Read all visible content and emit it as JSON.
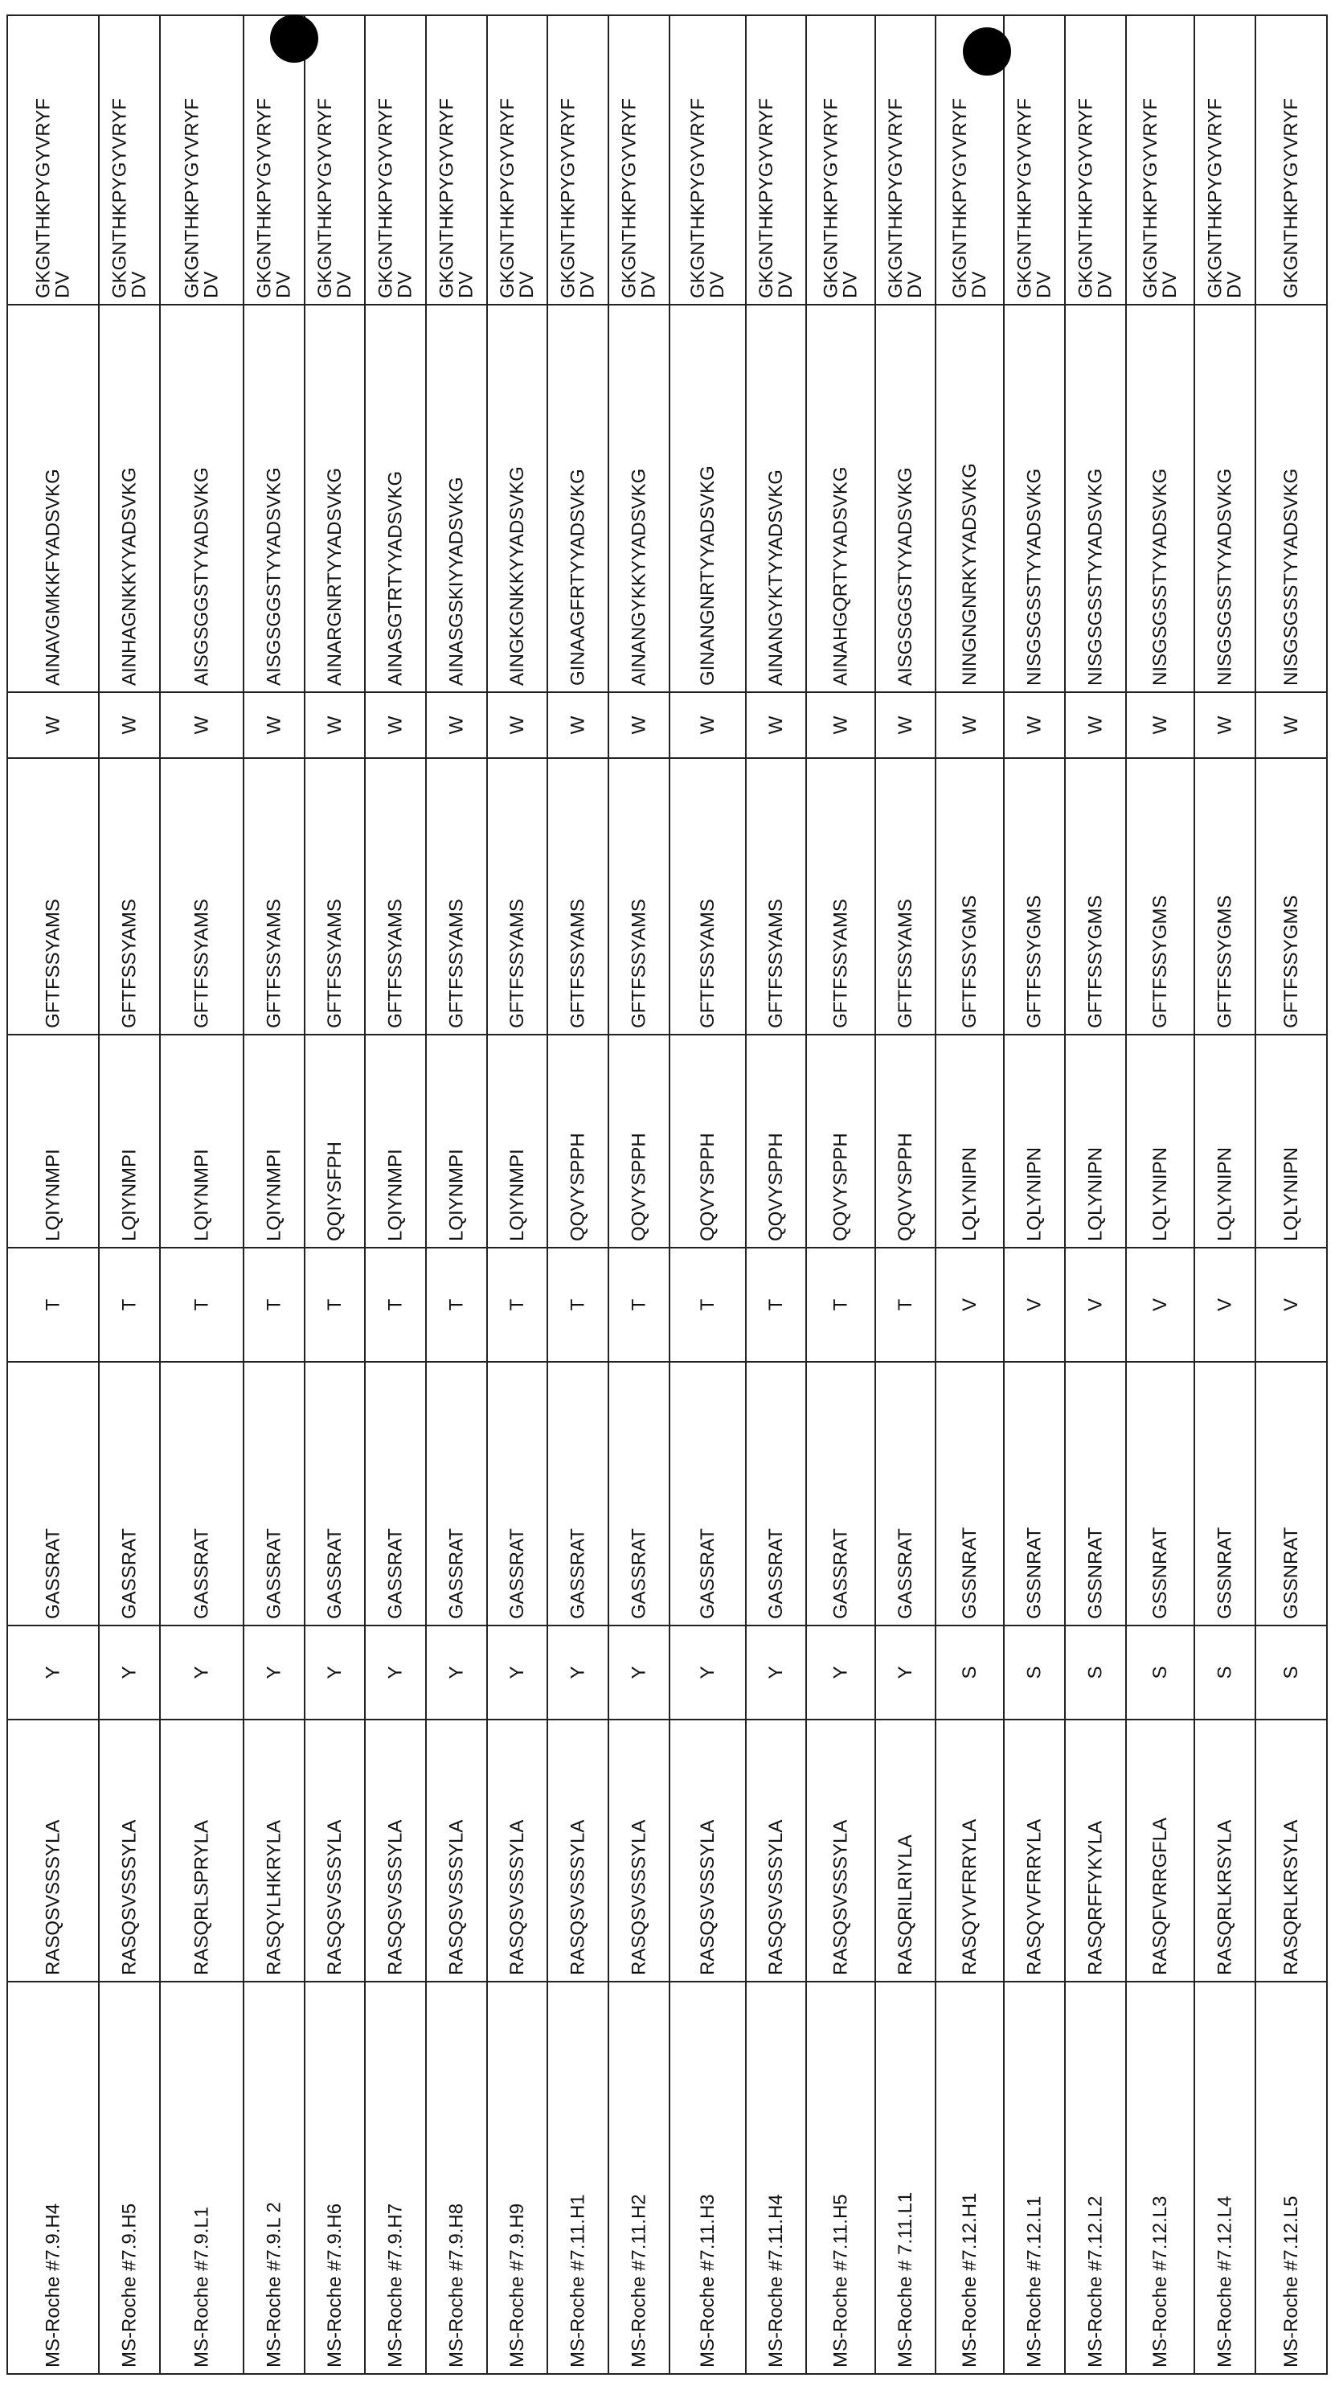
{
  "table": {
    "rows": [
      [
        "MS-Roche #7.9.H4",
        "RASQSVSSSYLA",
        "Y",
        "GASSRAT",
        "T",
        "LQIYNMPI",
        "GFTFSSYAMS",
        "W",
        "AINAVGMKKFYADSVKG",
        [
          "GKGNTHKPYGYVRYF",
          "DV"
        ]
      ],
      [
        "MS-Roche #7.9.H5",
        "RASQSVSSSYLA",
        "Y",
        "GASSRAT",
        "T",
        "LQIYNMPI",
        "GFTFSSYAMS",
        "W",
        "AINHAGNKKYYADSVKG",
        [
          "GKGNTHKPYGYVRYF",
          "DV"
        ]
      ],
      [
        "MS-Roche #7.9.L1",
        "RASQRLSPRYLA",
        "Y",
        "GASSRAT",
        "T",
        "LQIYNMPI",
        "GFTFSSYAMS",
        "W",
        "AISGSGGSTYYADSVKG",
        [
          "GKGNTHKPYGYVRYF",
          "DV"
        ]
      ],
      [
        "MS-Roche #7.9.L 2",
        "RASQYLHKRYLA",
        "Y",
        "GASSRAT",
        "T",
        "LQIYNMPI",
        "GFTFSSYAMS",
        "W",
        "AISGSGGSTYYADSVKG",
        [
          "GKGNTHKPYGYVRYF",
          "DV"
        ]
      ],
      [
        "MS-Roche #7.9.H6",
        "RASQSVSSSYLA",
        "Y",
        "GASSRAT",
        "T",
        "QQIYSFPH",
        "GFTFSSYAMS",
        "W",
        "AINARGNRTYYADSVKG",
        [
          "GKGNTHKPYGYVRYF",
          "DV"
        ]
      ],
      [
        "MS-Roche #7.9.H7",
        "RASQSVSSSYLA",
        "Y",
        "GASSRAT",
        "T",
        "LQIYNMPI",
        "GFTFSSYAMS",
        "W",
        "AINASGTRTYYADSVKG",
        [
          "GKGNTHKPYGYVRYF",
          "DV"
        ]
      ],
      [
        "MS-Roche #7.9.H8",
        "RASQSVSSSYLA",
        "Y",
        "GASSRAT",
        "T",
        "LQIYNMPI",
        "GFTFSSYAMS",
        "W",
        "AINASGSKIYYADSVKG",
        [
          "GKGNTHKPYGYVRYF",
          "DV"
        ]
      ],
      [
        "MS-Roche #7.9.H9",
        "RASQSVSSSYLA",
        "Y",
        "GASSRAT",
        "T",
        "LQIYNMPI",
        "GFTFSSYAMS",
        "W",
        "AINGKGNKKYYADSVKG",
        [
          "GKGNTHKPYGYVRYF",
          "DV"
        ]
      ],
      [
        "MS-Roche #7.11.H1",
        "RASQSVSSSYLA",
        "Y",
        "GASSRAT",
        "T",
        "QQVYSPPH",
        "GFTFSSYAMS",
        "W",
        "GINAAGFRTYYADSVKG",
        [
          "GKGNTHKPYGYVRYF",
          "DV"
        ]
      ],
      [
        "MS-Roche #7.11.H2",
        "RASQSVSSSYLA",
        "Y",
        "GASSRAT",
        "T",
        "QQVYSPPH",
        "GFTFSSYAMS",
        "W",
        "AINANGYKKYYADSVKG",
        [
          "GKGNTHKPYGYVRYF",
          "DV"
        ]
      ],
      [
        "MS-Roche #7.11.H3",
        "RASQSVSSSYLA",
        "Y",
        "GASSRAT",
        "T",
        "QQVYSPPH",
        "GFTFSSYAMS",
        "W",
        "GINANGNRTYYADSVKG",
        [
          "GKGNTHKPYGYVRYF",
          "DV"
        ]
      ],
      [
        "MS-Roche #7.11.H4",
        "RASQSVSSSYLA",
        "Y",
        "GASSRAT",
        "T",
        "QQVYSPPH",
        "GFTFSSYAMS",
        "W",
        "AINANGYKTYYADSVKG",
        [
          "GKGNTHKPYGYVRYF",
          "DV"
        ]
      ],
      [
        "MS-Roche #7.11.H5",
        "RASQSVSSSYLA",
        "Y",
        "GASSRAT",
        "T",
        "QQVYSPPH",
        "GFTFSSYAMS",
        "W",
        "AINAHGQRTYYADSVKG",
        [
          "GKGNTHKPYGYVRYF",
          "DV"
        ]
      ],
      [
        "MS-Roche # 7.11.L1",
        "RASQRILRIYLA",
        "Y",
        "GASSRAT",
        "T",
        "QQVYSPPH",
        "GFTFSSYAMS",
        "W",
        "AISGSGGSTYYADSVKG",
        [
          "GKGNTHKPYGYVRYF",
          "DV"
        ]
      ],
      [
        "MS-Roche #7.12.H1",
        "RASQYVFRRYLA",
        "S",
        "GSSNRAT",
        "V",
        "LQLYNIPN",
        "GFTFSSYGMS",
        "W",
        "NINGNGNRKYYADSVKG",
        [
          "GKGNTHKPYGYVRYF",
          "DV"
        ]
      ],
      [
        "MS-Roche #7.12.L1",
        "RASQYVFRRYLA",
        "S",
        "GSSNRAT",
        "V",
        "LQLYNIPN",
        "GFTFSSYGMS",
        "W",
        "NISGSGSSTYYADSVKG",
        [
          "GKGNTHKPYGYVRYF",
          "DV"
        ]
      ],
      [
        "MS-Roche #7.12.L2",
        "RASQRFFYKYLA",
        "S",
        "GSSNRAT",
        "V",
        "LQLYNIPN",
        "GFTFSSYGMS",
        "W",
        "NISGSGSSTYYADSVKG",
        [
          "GKGNTHKPYGYVRYF",
          "DV"
        ]
      ],
      [
        "MS-Roche #7.12.L3",
        "RASQFVRRGFLA",
        "S",
        "GSSNRAT",
        "V",
        "LQLYNIPN",
        "GFTFSSYGMS",
        "W",
        "NISGSGSSTYYADSVKG",
        [
          "GKGNTHKPYGYVRYF",
          "DV"
        ]
      ],
      [
        "MS-Roche #7.12.L4",
        "RASQRLKRSYLA",
        "S",
        "GSSNRAT",
        "V",
        "LQLYNIPN",
        "GFTFSSYGMS",
        "W",
        "NISGSGSSTYYADSVKG",
        [
          "GKGNTHKPYGYVRYF",
          "DV"
        ]
      ],
      [
        "MS-Roche #7.12.L5",
        "RASQRLKRSYLA",
        "S",
        "GSSNRAT",
        "V",
        "LQLYNIPN",
        "GFTFSSYGMS",
        "W",
        "NISGSGSSTYYADSVKG",
        [
          "GKGNTHKPYGYVRYF"
        ]
      ]
    ]
  }
}
